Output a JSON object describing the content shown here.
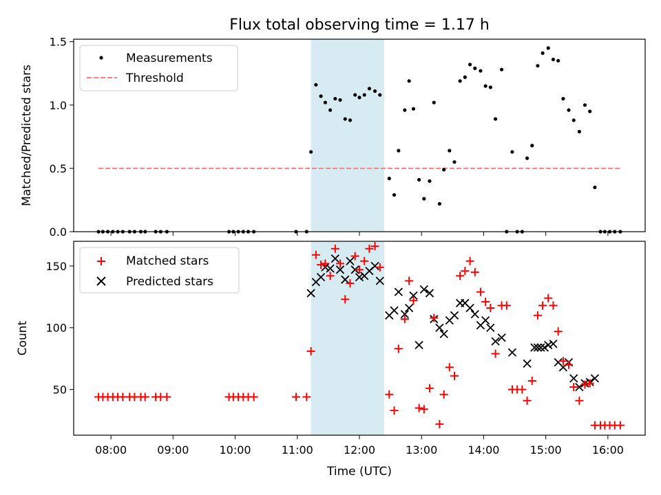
{
  "chart_data": {
    "type": "scatter",
    "title": "Flux total observing time = 1.17 h",
    "xlabel": "Time (UTC)",
    "x_unit": "hours UTC",
    "xlim": [
      7.4,
      16.6
    ],
    "x_ticks": [
      {
        "value": 8,
        "label": "08:00"
      },
      {
        "value": 9,
        "label": "09:00"
      },
      {
        "value": 10,
        "label": "10:00"
      },
      {
        "value": 11,
        "label": "11:00"
      },
      {
        "value": 12,
        "label": "12:00"
      },
      {
        "value": 13,
        "label": "13:00"
      },
      {
        "value": 14,
        "label": "14:00"
      },
      {
        "value": 15,
        "label": "15:00"
      },
      {
        "value": 16,
        "label": "16:00"
      }
    ],
    "highlight_span": {
      "x_start": 11.22,
      "x_end": 12.4,
      "color": "#add8e6"
    },
    "colors": {
      "measurements": "#000000",
      "threshold": "#ff7f7f",
      "matched": "#ff0000",
      "predicted": "#000000",
      "span": "#add8e6"
    },
    "panels": [
      {
        "ylabel": "Matched/Predicted stars",
        "ylim": [
          0,
          1.52
        ],
        "y_ticks": [
          {
            "value": 0,
            "label": "0.0"
          },
          {
            "value": 0.5,
            "label": "0.5"
          },
          {
            "value": 1.0,
            "label": "1.0"
          },
          {
            "value": 1.5,
            "label": "1.5"
          }
        ],
        "legend": {
          "position": "upper-left",
          "entries": [
            "Measurements",
            "Threshold"
          ]
        },
        "threshold": {
          "value": 0.5,
          "x_start": 7.8,
          "x_end": 16.2
        },
        "measurements": [
          {
            "x": 7.8,
            "y": 0
          },
          {
            "x": 7.87,
            "y": 0
          },
          {
            "x": 7.95,
            "y": 0
          },
          {
            "x": 8.03,
            "y": 0
          },
          {
            "x": 8.11,
            "y": 0
          },
          {
            "x": 8.19,
            "y": 0
          },
          {
            "x": 8.3,
            "y": 0
          },
          {
            "x": 8.38,
            "y": 0
          },
          {
            "x": 8.48,
            "y": 0
          },
          {
            "x": 8.55,
            "y": 0
          },
          {
            "x": 8.72,
            "y": 0
          },
          {
            "x": 8.8,
            "y": 0
          },
          {
            "x": 8.9,
            "y": 0
          },
          {
            "x": 9.9,
            "y": 0
          },
          {
            "x": 9.97,
            "y": 0
          },
          {
            "x": 10.05,
            "y": 0
          },
          {
            "x": 10.13,
            "y": 0
          },
          {
            "x": 10.21,
            "y": 0
          },
          {
            "x": 10.3,
            "y": 0
          },
          {
            "x": 10.98,
            "y": 0
          },
          {
            "x": 11.15,
            "y": 0
          },
          {
            "x": 11.22,
            "y": 0.63
          },
          {
            "x": 11.3,
            "y": 1.16
          },
          {
            "x": 11.38,
            "y": 1.07
          },
          {
            "x": 11.45,
            "y": 1.02
          },
          {
            "x": 11.53,
            "y": 0.96
          },
          {
            "x": 11.61,
            "y": 1.05
          },
          {
            "x": 11.69,
            "y": 1.04
          },
          {
            "x": 11.77,
            "y": 0.89
          },
          {
            "x": 11.85,
            "y": 0.88
          },
          {
            "x": 11.93,
            "y": 1.08
          },
          {
            "x": 12.0,
            "y": 1.06
          },
          {
            "x": 12.08,
            "y": 1.08
          },
          {
            "x": 12.16,
            "y": 1.13
          },
          {
            "x": 12.25,
            "y": 1.11
          },
          {
            "x": 12.33,
            "y": 1.08
          },
          {
            "x": 12.48,
            "y": 0.42
          },
          {
            "x": 12.56,
            "y": 0.29
          },
          {
            "x": 12.63,
            "y": 0.64
          },
          {
            "x": 12.73,
            "y": 0.96
          },
          {
            "x": 12.8,
            "y": 1.19
          },
          {
            "x": 12.87,
            "y": 0.97
          },
          {
            "x": 12.96,
            "y": 0.41
          },
          {
            "x": 13.04,
            "y": 0.26
          },
          {
            "x": 13.13,
            "y": 0.4
          },
          {
            "x": 13.2,
            "y": 1.02
          },
          {
            "x": 13.29,
            "y": 0.22
          },
          {
            "x": 13.36,
            "y": 0.49
          },
          {
            "x": 13.45,
            "y": 0.64
          },
          {
            "x": 13.53,
            "y": 0.55
          },
          {
            "x": 13.62,
            "y": 1.19
          },
          {
            "x": 13.7,
            "y": 1.22
          },
          {
            "x": 13.78,
            "y": 1.32
          },
          {
            "x": 13.86,
            "y": 1.29
          },
          {
            "x": 13.95,
            "y": 1.27
          },
          {
            "x": 14.03,
            "y": 1.15
          },
          {
            "x": 14.11,
            "y": 1.14
          },
          {
            "x": 14.19,
            "y": 0.89
          },
          {
            "x": 14.29,
            "y": 1.28
          },
          {
            "x": 14.37,
            "y": 0
          },
          {
            "x": 14.46,
            "y": 0.63
          },
          {
            "x": 14.54,
            "y": 0
          },
          {
            "x": 14.62,
            "y": 0
          },
          {
            "x": 14.7,
            "y": 0.58
          },
          {
            "x": 14.78,
            "y": 0.68
          },
          {
            "x": 14.87,
            "y": 1.31
          },
          {
            "x": 14.95,
            "y": 1.41
          },
          {
            "x": 15.04,
            "y": 1.45
          },
          {
            "x": 15.12,
            "y": 1.36
          },
          {
            "x": 15.2,
            "y": 1.35
          },
          {
            "x": 15.28,
            "y": 1.05
          },
          {
            "x": 15.37,
            "y": 0.96
          },
          {
            "x": 15.45,
            "y": 0.88
          },
          {
            "x": 15.54,
            "y": 0.79
          },
          {
            "x": 15.63,
            "y": 1.0
          },
          {
            "x": 15.71,
            "y": 0.95
          },
          {
            "x": 15.79,
            "y": 0.35
          },
          {
            "x": 15.88,
            "y": 0
          },
          {
            "x": 15.95,
            "y": 0
          },
          {
            "x": 16.03,
            "y": 0
          },
          {
            "x": 16.11,
            "y": 0
          },
          {
            "x": 16.2,
            "y": 0
          }
        ]
      },
      {
        "ylabel": "Count",
        "ylim": [
          13,
          170
        ],
        "y_ticks": [
          {
            "value": 50,
            "label": "50"
          },
          {
            "value": 100,
            "label": "100"
          },
          {
            "value": 150,
            "label": "150"
          }
        ],
        "legend": {
          "position": "upper-left",
          "entries": [
            "Matched stars",
            "Predicted stars"
          ]
        },
        "series": [
          {
            "name": "Matched stars",
            "marker": "plus",
            "points": [
              {
                "x": 7.8,
                "y": 44
              },
              {
                "x": 7.87,
                "y": 44
              },
              {
                "x": 7.95,
                "y": 44
              },
              {
                "x": 8.03,
                "y": 44
              },
              {
                "x": 8.11,
                "y": 44
              },
              {
                "x": 8.19,
                "y": 44
              },
              {
                "x": 8.3,
                "y": 44
              },
              {
                "x": 8.38,
                "y": 44
              },
              {
                "x": 8.48,
                "y": 44
              },
              {
                "x": 8.55,
                "y": 44
              },
              {
                "x": 8.72,
                "y": 44
              },
              {
                "x": 8.8,
                "y": 44
              },
              {
                "x": 8.9,
                "y": 44
              },
              {
                "x": 9.9,
                "y": 44
              },
              {
                "x": 9.97,
                "y": 44
              },
              {
                "x": 10.05,
                "y": 44
              },
              {
                "x": 10.13,
                "y": 44
              },
              {
                "x": 10.21,
                "y": 44
              },
              {
                "x": 10.3,
                "y": 44
              },
              {
                "x": 10.98,
                "y": 44
              },
              {
                "x": 11.15,
                "y": 44
              },
              {
                "x": 11.22,
                "y": 81
              },
              {
                "x": 11.3,
                "y": 159
              },
              {
                "x": 11.38,
                "y": 151
              },
              {
                "x": 11.45,
                "y": 152
              },
              {
                "x": 11.53,
                "y": 142
              },
              {
                "x": 11.61,
                "y": 164
              },
              {
                "x": 11.69,
                "y": 152
              },
              {
                "x": 11.77,
                "y": 123
              },
              {
                "x": 11.85,
                "y": 136
              },
              {
                "x": 11.93,
                "y": 158
              },
              {
                "x": 12.0,
                "y": 147
              },
              {
                "x": 12.08,
                "y": 154
              },
              {
                "x": 12.16,
                "y": 164
              },
              {
                "x": 12.25,
                "y": 166
              },
              {
                "x": 12.33,
                "y": 149
              },
              {
                "x": 12.48,
                "y": 46
              },
              {
                "x": 12.56,
                "y": 33
              },
              {
                "x": 12.63,
                "y": 83
              },
              {
                "x": 12.73,
                "y": 107
              },
              {
                "x": 12.8,
                "y": 138
              },
              {
                "x": 12.87,
                "y": 122
              },
              {
                "x": 12.96,
                "y": 35
              },
              {
                "x": 13.04,
                "y": 34
              },
              {
                "x": 13.13,
                "y": 51
              },
              {
                "x": 13.2,
                "y": 108
              },
              {
                "x": 13.29,
                "y": 22
              },
              {
                "x": 13.36,
                "y": 46
              },
              {
                "x": 13.45,
                "y": 68
              },
              {
                "x": 13.53,
                "y": 61
              },
              {
                "x": 13.62,
                "y": 142
              },
              {
                "x": 13.7,
                "y": 146
              },
              {
                "x": 13.78,
                "y": 154
              },
              {
                "x": 13.86,
                "y": 145
              },
              {
                "x": 13.95,
                "y": 129
              },
              {
                "x": 14.03,
                "y": 121
              },
              {
                "x": 14.11,
                "y": 116
              },
              {
                "x": 14.19,
                "y": 79
              },
              {
                "x": 14.29,
                "y": 118
              },
              {
                "x": 14.37,
                "y": 118
              },
              {
                "x": 14.46,
                "y": 50
              },
              {
                "x": 14.54,
                "y": 50
              },
              {
                "x": 14.62,
                "y": 50
              },
              {
                "x": 14.7,
                "y": 41
              },
              {
                "x": 14.78,
                "y": 57
              },
              {
                "x": 14.87,
                "y": 110
              },
              {
                "x": 14.95,
                "y": 118
              },
              {
                "x": 15.04,
                "y": 124
              },
              {
                "x": 15.12,
                "y": 118
              },
              {
                "x": 15.2,
                "y": 97
              },
              {
                "x": 15.28,
                "y": 73
              },
              {
                "x": 15.37,
                "y": 70
              },
              {
                "x": 15.45,
                "y": 52
              },
              {
                "x": 15.54,
                "y": 41
              },
              {
                "x": 15.63,
                "y": 54
              },
              {
                "x": 15.71,
                "y": 55
              },
              {
                "x": 15.79,
                "y": 21
              },
              {
                "x": 15.88,
                "y": 21
              },
              {
                "x": 15.95,
                "y": 21
              },
              {
                "x": 16.03,
                "y": 21
              },
              {
                "x": 16.11,
                "y": 21
              },
              {
                "x": 16.2,
                "y": 21
              }
            ]
          },
          {
            "name": "Predicted stars",
            "marker": "x",
            "points": [
              {
                "x": 11.22,
                "y": 128
              },
              {
                "x": 11.3,
                "y": 137
              },
              {
                "x": 11.38,
                "y": 141
              },
              {
                "x": 11.45,
                "y": 149
              },
              {
                "x": 11.53,
                "y": 148
              },
              {
                "x": 11.61,
                "y": 156
              },
              {
                "x": 11.69,
                "y": 147
              },
              {
                "x": 11.77,
                "y": 139
              },
              {
                "x": 11.85,
                "y": 154
              },
              {
                "x": 11.93,
                "y": 147
              },
              {
                "x": 12.0,
                "y": 141
              },
              {
                "x": 12.08,
                "y": 142
              },
              {
                "x": 12.16,
                "y": 146
              },
              {
                "x": 12.25,
                "y": 150
              },
              {
                "x": 12.33,
                "y": 138
              },
              {
                "x": 12.48,
                "y": 110
              },
              {
                "x": 12.56,
                "y": 114
              },
              {
                "x": 12.63,
                "y": 129
              },
              {
                "x": 12.73,
                "y": 111
              },
              {
                "x": 12.8,
                "y": 116
              },
              {
                "x": 12.87,
                "y": 126
              },
              {
                "x": 12.96,
                "y": 86
              },
              {
                "x": 13.04,
                "y": 131
              },
              {
                "x": 13.13,
                "y": 128
              },
              {
                "x": 13.2,
                "y": 107
              },
              {
                "x": 13.29,
                "y": 100
              },
              {
                "x": 13.36,
                "y": 95
              },
              {
                "x": 13.45,
                "y": 106
              },
              {
                "x": 13.53,
                "y": 110
              },
              {
                "x": 13.62,
                "y": 120
              },
              {
                "x": 13.7,
                "y": 120
              },
              {
                "x": 13.78,
                "y": 116
              },
              {
                "x": 13.86,
                "y": 111
              },
              {
                "x": 13.95,
                "y": 102
              },
              {
                "x": 14.03,
                "y": 106
              },
              {
                "x": 14.11,
                "y": 100
              },
              {
                "x": 14.19,
                "y": 89
              },
              {
                "x": 14.29,
                "y": 92
              },
              {
                "x": 14.46,
                "y": 80
              },
              {
                "x": 14.7,
                "y": 71
              },
              {
                "x": 14.82,
                "y": 84
              },
              {
                "x": 14.87,
                "y": 84
              },
              {
                "x": 14.92,
                "y": 84
              },
              {
                "x": 14.98,
                "y": 84
              },
              {
                "x": 15.04,
                "y": 86
              },
              {
                "x": 15.12,
                "y": 87
              },
              {
                "x": 15.2,
                "y": 72
              },
              {
                "x": 15.28,
                "y": 68
              },
              {
                "x": 15.37,
                "y": 72
              },
              {
                "x": 15.45,
                "y": 59
              },
              {
                "x": 15.54,
                "y": 52
              },
              {
                "x": 15.63,
                "y": 55
              },
              {
                "x": 15.71,
                "y": 56
              },
              {
                "x": 15.79,
                "y": 59
              }
            ]
          }
        ]
      }
    ]
  }
}
